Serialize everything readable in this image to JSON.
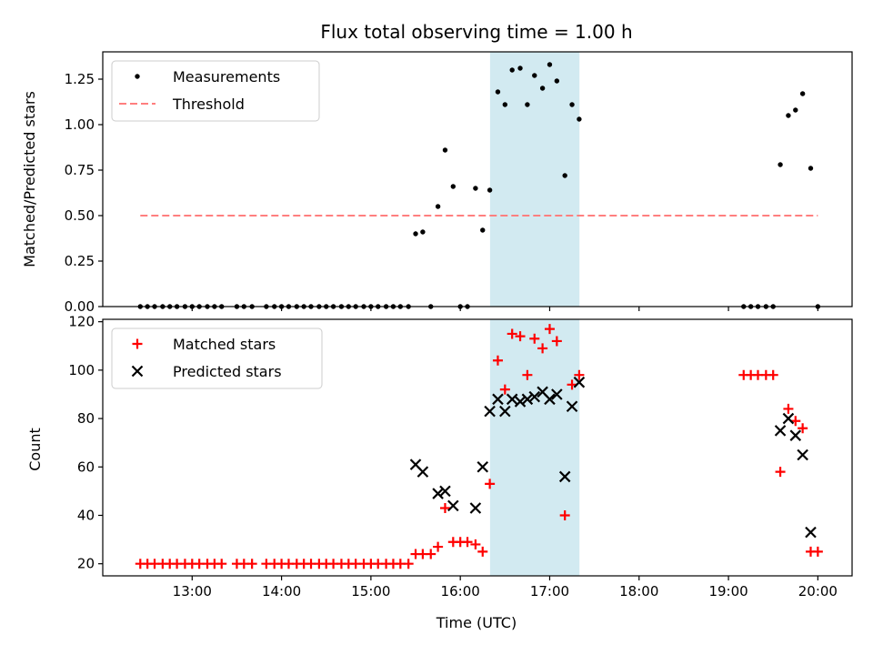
{
  "chart_data": {
    "type": "scatter",
    "title": "Flux total observing time = 1.00 h",
    "xlabel": "Time (UTC)",
    "x_unit": "hours UTC",
    "xlim": [
      12.0,
      20.383
    ],
    "x_ticks": [
      {
        "value": 13,
        "label": "13:00"
      },
      {
        "value": 14,
        "label": "14:00"
      },
      {
        "value": 15,
        "label": "15:00"
      },
      {
        "value": 16,
        "label": "16:00"
      },
      {
        "value": 17,
        "label": "17:00"
      },
      {
        "value": 18,
        "label": "18:00"
      },
      {
        "value": 19,
        "label": "19:00"
      },
      {
        "value": 20,
        "label": "20:00"
      }
    ],
    "highlight_span": {
      "x_start": 16.333,
      "x_end": 17.333,
      "color": "#add8e6"
    },
    "panels": [
      {
        "id": "top",
        "ylabel": "Matched/Predicted stars",
        "ylim": [
          0,
          1.4
        ],
        "y_ticks": [
          {
            "value": 0,
            "label": "0.00"
          },
          {
            "value": 0.25,
            "label": "0.25"
          },
          {
            "value": 0.5,
            "label": "0.50"
          },
          {
            "value": 0.75,
            "label": "0.75"
          },
          {
            "value": 1.0,
            "label": "1.00"
          },
          {
            "value": 1.25,
            "label": "1.25"
          }
        ],
        "legend": [
          {
            "label": "Measurements",
            "marker": "dot",
            "color": "#000000"
          },
          {
            "label": "Threshold",
            "marker": "dashed-line",
            "color": "#ff7f7f"
          }
        ],
        "series": [
          {
            "name": "Measurements",
            "marker": "dot",
            "color": "#000000",
            "points": [
              [
                12.42,
                0
              ],
              [
                12.5,
                0
              ],
              [
                12.58,
                0
              ],
              [
                12.67,
                0
              ],
              [
                12.75,
                0
              ],
              [
                12.83,
                0
              ],
              [
                12.92,
                0
              ],
              [
                13.0,
                0
              ],
              [
                13.08,
                0
              ],
              [
                13.17,
                0
              ],
              [
                13.25,
                0
              ],
              [
                13.33,
                0
              ],
              [
                13.5,
                0
              ],
              [
                13.58,
                0
              ],
              [
                13.67,
                0
              ],
              [
                13.83,
                0
              ],
              [
                13.92,
                0
              ],
              [
                14.0,
                0
              ],
              [
                14.08,
                0
              ],
              [
                14.17,
                0
              ],
              [
                14.25,
                0
              ],
              [
                14.33,
                0
              ],
              [
                14.42,
                0
              ],
              [
                14.5,
                0
              ],
              [
                14.58,
                0
              ],
              [
                14.67,
                0
              ],
              [
                14.75,
                0
              ],
              [
                14.83,
                0
              ],
              [
                14.92,
                0
              ],
              [
                15.0,
                0
              ],
              [
                15.08,
                0
              ],
              [
                15.17,
                0
              ],
              [
                15.25,
                0
              ],
              [
                15.33,
                0
              ],
              [
                15.42,
                0
              ],
              [
                15.67,
                0
              ],
              [
                16.0,
                0
              ],
              [
                16.08,
                0
              ],
              [
                15.5,
                0.4
              ],
              [
                15.58,
                0.41
              ],
              [
                15.75,
                0.55
              ],
              [
                15.83,
                0.86
              ],
              [
                15.92,
                0.66
              ],
              [
                16.17,
                0.65
              ],
              [
                16.25,
                0.42
              ],
              [
                16.33,
                0.64
              ],
              [
                16.42,
                1.18
              ],
              [
                16.5,
                1.11
              ],
              [
                16.58,
                1.3
              ],
              [
                16.67,
                1.31
              ],
              [
                16.75,
                1.11
              ],
              [
                16.83,
                1.27
              ],
              [
                16.92,
                1.2
              ],
              [
                17.0,
                1.33
              ],
              [
                17.08,
                1.24
              ],
              [
                17.17,
                0.72
              ],
              [
                17.25,
                1.11
              ],
              [
                17.33,
                1.03
              ],
              [
                19.17,
                0
              ],
              [
                19.25,
                0
              ],
              [
                19.33,
                0
              ],
              [
                19.42,
                0
              ],
              [
                19.5,
                0
              ],
              [
                19.58,
                0.78
              ],
              [
                19.67,
                1.05
              ],
              [
                19.75,
                1.08
              ],
              [
                19.83,
                1.17
              ],
              [
                19.92,
                0.76
              ],
              [
                20.0,
                0
              ]
            ]
          },
          {
            "name": "Threshold",
            "marker": "dashed-line",
            "color": "#ff7f7f",
            "points": [
              [
                12.42,
                0.5
              ],
              [
                20.0,
                0.5
              ]
            ]
          }
        ]
      },
      {
        "id": "bottom",
        "ylabel": "Count",
        "ylim": [
          15,
          121
        ],
        "y_ticks": [
          {
            "value": 20,
            "label": "20"
          },
          {
            "value": 40,
            "label": "40"
          },
          {
            "value": 60,
            "label": "60"
          },
          {
            "value": 80,
            "label": "80"
          },
          {
            "value": 100,
            "label": "100"
          },
          {
            "value": 120,
            "label": "120"
          }
        ],
        "legend": [
          {
            "label": "Matched stars",
            "marker": "plus",
            "color": "#ff0000"
          },
          {
            "label": "Predicted stars",
            "marker": "x",
            "color": "#000000"
          }
        ],
        "series": [
          {
            "name": "Matched stars",
            "marker": "plus",
            "color": "#ff0000",
            "points": [
              [
                12.42,
                20
              ],
              [
                12.5,
                20
              ],
              [
                12.58,
                20
              ],
              [
                12.67,
                20
              ],
              [
                12.75,
                20
              ],
              [
                12.83,
                20
              ],
              [
                12.92,
                20
              ],
              [
                13.0,
                20
              ],
              [
                13.08,
                20
              ],
              [
                13.17,
                20
              ],
              [
                13.25,
                20
              ],
              [
                13.33,
                20
              ],
              [
                13.5,
                20
              ],
              [
                13.58,
                20
              ],
              [
                13.67,
                20
              ],
              [
                13.83,
                20
              ],
              [
                13.92,
                20
              ],
              [
                14.0,
                20
              ],
              [
                14.08,
                20
              ],
              [
                14.17,
                20
              ],
              [
                14.25,
                20
              ],
              [
                14.33,
                20
              ],
              [
                14.42,
                20
              ],
              [
                14.5,
                20
              ],
              [
                14.58,
                20
              ],
              [
                14.67,
                20
              ],
              [
                14.75,
                20
              ],
              [
                14.83,
                20
              ],
              [
                14.92,
                20
              ],
              [
                15.0,
                20
              ],
              [
                15.08,
                20
              ],
              [
                15.17,
                20
              ],
              [
                15.25,
                20
              ],
              [
                15.33,
                20
              ],
              [
                15.42,
                20
              ],
              [
                15.5,
                24
              ],
              [
                15.58,
                24
              ],
              [
                15.67,
                24
              ],
              [
                15.75,
                27
              ],
              [
                15.83,
                43
              ],
              [
                15.92,
                29
              ],
              [
                16.0,
                29
              ],
              [
                16.08,
                29
              ],
              [
                16.17,
                28
              ],
              [
                16.25,
                25
              ],
              [
                16.33,
                53
              ],
              [
                16.42,
                104
              ],
              [
                16.5,
                92
              ],
              [
                16.58,
                115
              ],
              [
                16.67,
                114
              ],
              [
                16.75,
                98
              ],
              [
                16.83,
                113
              ],
              [
                16.92,
                109
              ],
              [
                17.0,
                117
              ],
              [
                17.08,
                112
              ],
              [
                17.17,
                40
              ],
              [
                17.25,
                94
              ],
              [
                17.33,
                98
              ],
              [
                19.17,
                98
              ],
              [
                19.25,
                98
              ],
              [
                19.33,
                98
              ],
              [
                19.42,
                98
              ],
              [
                19.5,
                98
              ],
              [
                19.58,
                58
              ],
              [
                19.67,
                84
              ],
              [
                19.75,
                79
              ],
              [
                19.83,
                76
              ],
              [
                19.92,
                25
              ],
              [
                20.0,
                25
              ]
            ]
          },
          {
            "name": "Predicted stars",
            "marker": "x",
            "color": "#000000",
            "points": [
              [
                15.5,
                61
              ],
              [
                15.58,
                58
              ],
              [
                15.75,
                49
              ],
              [
                15.83,
                50
              ],
              [
                15.92,
                44
              ],
              [
                16.17,
                43
              ],
              [
                16.25,
                60
              ],
              [
                16.33,
                83
              ],
              [
                16.42,
                88
              ],
              [
                16.5,
                83
              ],
              [
                16.58,
                88
              ],
              [
                16.67,
                87
              ],
              [
                16.75,
                88
              ],
              [
                16.83,
                89
              ],
              [
                16.92,
                91
              ],
              [
                17.0,
                88
              ],
              [
                17.08,
                90
              ],
              [
                17.17,
                56
              ],
              [
                17.25,
                85
              ],
              [
                17.33,
                95
              ],
              [
                19.58,
                75
              ],
              [
                19.67,
                80
              ],
              [
                19.75,
                73
              ],
              [
                19.83,
                65
              ],
              [
                19.92,
                33
              ]
            ]
          }
        ]
      }
    ]
  }
}
